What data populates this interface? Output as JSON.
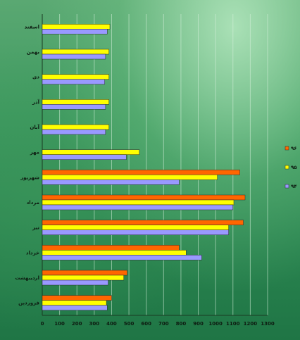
{
  "chart_data": {
    "type": "bar",
    "orientation": "horizontal",
    "categories": [
      "اسفند",
      "بهمن",
      "دی",
      "آذر",
      "آبان",
      "مهر",
      "شهریور",
      "مرداد",
      "تیر",
      "خرداد",
      "اردیبهشت",
      "فروردین"
    ],
    "series": [
      {
        "name": "۹۶",
        "color": "#ff6600",
        "values": [
          null,
          null,
          null,
          null,
          null,
          null,
          1140,
          1170,
          1160,
          790,
          490,
          400
        ]
      },
      {
        "name": "۹۵",
        "color": "#ffff00",
        "values": [
          390,
          385,
          385,
          385,
          385,
          560,
          1010,
          1105,
          1075,
          830,
          470,
          370
        ]
      },
      {
        "name": "۹۴",
        "color": "#9999ff",
        "values": [
          375,
          365,
          360,
          365,
          365,
          485,
          790,
          1100,
          1075,
          920,
          380,
          375
        ]
      }
    ],
    "xticks": [
      "0",
      "100",
      "200",
      "300",
      "400",
      "500",
      "600",
      "700",
      "800",
      "900",
      "1000",
      "1100",
      "1200",
      "1300"
    ],
    "xlim": [
      0,
      1300
    ],
    "grid": true,
    "legend_position": "right"
  }
}
